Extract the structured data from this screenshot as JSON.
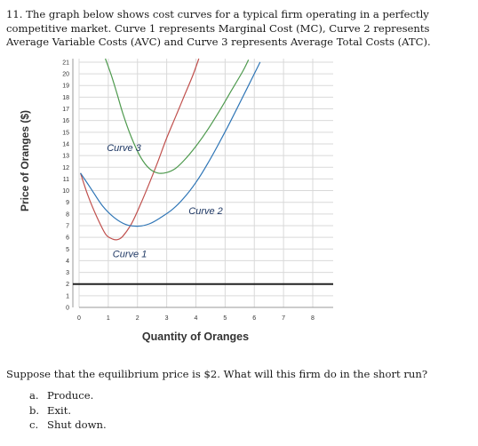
{
  "question": {
    "text": "11. The graph below shows cost curves for a typical firm operating in a perfectly competitive market. Curve 1 represents Marginal Cost (MC), Curve 2 represents Average Variable Costs (AVC) and Curve 3 represents Average Total Costs (ATC)."
  },
  "prompt": "Suppose that the equilibrium price is $2. What will this firm do in the short run?",
  "options": [
    {
      "letter": "a.",
      "text": "Produce."
    },
    {
      "letter": "b.",
      "text": "Exit."
    },
    {
      "letter": "c.",
      "text": "Shut down."
    }
  ],
  "chart_data": {
    "type": "line",
    "xlabel": "Quantity of Oranges",
    "ylabel": "Price of Oranges ($)",
    "xlim": [
      0,
      8.7
    ],
    "ylim": [
      0,
      21.3
    ],
    "x_ticks": [
      0,
      1,
      2,
      3,
      4,
      5,
      6,
      7,
      8
    ],
    "y_ticks": [
      0,
      1,
      2,
      3,
      4,
      5,
      6,
      7,
      8,
      9,
      10,
      11,
      12,
      13,
      14,
      15,
      16,
      17,
      18,
      19,
      20,
      21
    ],
    "grid": true,
    "price_line": {
      "y": 2,
      "color": "#222222"
    },
    "series": [
      {
        "name": "Curve 1",
        "color": "#c0504d",
        "points": [
          [
            0.05,
            11.5
          ],
          [
            0.3,
            9.6
          ],
          [
            0.6,
            7.8
          ],
          [
            0.9,
            6.3
          ],
          [
            1.1,
            5.9
          ],
          [
            1.3,
            5.8
          ],
          [
            1.5,
            6.1
          ],
          [
            1.8,
            7.2
          ],
          [
            2.1,
            8.8
          ],
          [
            2.4,
            10.6
          ],
          [
            2.7,
            12.5
          ],
          [
            3.0,
            14.5
          ],
          [
            3.3,
            16.3
          ],
          [
            3.6,
            18.1
          ],
          [
            3.9,
            19.9
          ],
          [
            4.1,
            21.3
          ]
        ]
      },
      {
        "name": "Curve 2",
        "color": "#2e75b6",
        "points": [
          [
            0.05,
            11.5
          ],
          [
            0.4,
            10.2
          ],
          [
            0.8,
            8.7
          ],
          [
            1.2,
            7.7
          ],
          [
            1.6,
            7.1
          ],
          [
            2.0,
            6.95
          ],
          [
            2.4,
            7.15
          ],
          [
            2.8,
            7.7
          ],
          [
            3.2,
            8.4
          ],
          [
            3.6,
            9.4
          ],
          [
            4.0,
            10.7
          ],
          [
            4.4,
            12.3
          ],
          [
            4.8,
            14.1
          ],
          [
            5.2,
            16.0
          ],
          [
            5.6,
            18.0
          ],
          [
            6.0,
            20.0
          ],
          [
            6.2,
            21.0
          ]
        ]
      },
      {
        "name": "Curve 3",
        "color": "#4e9a4e",
        "points": [
          [
            0.9,
            21.3
          ],
          [
            1.1,
            19.9
          ],
          [
            1.3,
            18.3
          ],
          [
            1.5,
            16.6
          ],
          [
            1.8,
            14.5
          ],
          [
            2.1,
            12.9
          ],
          [
            2.4,
            11.9
          ],
          [
            2.7,
            11.5
          ],
          [
            3.0,
            11.55
          ],
          [
            3.3,
            11.9
          ],
          [
            3.6,
            12.6
          ],
          [
            4.0,
            13.8
          ],
          [
            4.4,
            15.2
          ],
          [
            4.8,
            16.8
          ],
          [
            5.2,
            18.5
          ],
          [
            5.6,
            20.2
          ],
          [
            5.8,
            21.2
          ]
        ]
      }
    ],
    "annotations": [
      {
        "text": "Curve 3",
        "series": 2
      },
      {
        "text": "Curve 2",
        "series": 1
      },
      {
        "text": "Curve 1",
        "series": 0
      }
    ]
  }
}
